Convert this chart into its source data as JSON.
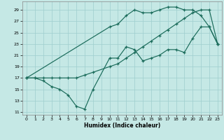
{
  "xlabel": "Humidex (Indice chaleur)",
  "bg_color": "#c5e8e5",
  "grid_color": "#9ecece",
  "line_color": "#1a6b5a",
  "xlim": [
    -0.5,
    23.5
  ],
  "ylim": [
    10.5,
    30.5
  ],
  "xticks": [
    0,
    1,
    2,
    3,
    4,
    5,
    6,
    7,
    8,
    9,
    10,
    11,
    12,
    13,
    14,
    15,
    16,
    17,
    18,
    19,
    20,
    21,
    22,
    23
  ],
  "yticks": [
    11,
    13,
    15,
    17,
    19,
    21,
    23,
    25,
    27,
    29
  ],
  "line1_x": [
    0,
    1,
    2,
    3,
    4,
    5,
    6,
    7,
    8,
    10,
    11,
    12,
    13,
    14,
    15,
    16,
    17,
    18,
    19,
    20,
    21,
    22,
    23
  ],
  "line1_y": [
    17,
    17,
    16.5,
    15.5,
    15.0,
    14.0,
    12.0,
    11.5,
    15.0,
    20.5,
    20.5,
    22.5,
    22.0,
    20.0,
    20.5,
    21.0,
    22.0,
    22.0,
    21.5,
    24.0,
    26.0,
    26.0,
    23.0
  ],
  "line2_x": [
    0,
    1,
    2,
    3,
    4,
    5,
    6,
    7,
    8,
    10,
    11,
    12,
    13,
    14,
    15,
    16,
    17,
    18,
    19,
    20,
    21,
    22,
    23
  ],
  "line2_y": [
    17,
    17,
    17,
    17,
    17,
    17,
    17,
    17.5,
    18.0,
    19.0,
    19.5,
    20.5,
    21.5,
    22.5,
    23.5,
    24.5,
    25.5,
    26.5,
    27.5,
    28.5,
    29.0,
    29.0,
    23.0
  ],
  "line3_x": [
    0,
    10,
    11,
    12,
    13,
    14,
    15,
    16,
    17,
    18,
    19,
    20,
    21,
    22,
    23
  ],
  "line3_y": [
    17,
    26,
    26.5,
    28,
    29,
    28.5,
    28.5,
    29,
    29.5,
    29.5,
    29,
    29,
    28,
    26,
    23
  ]
}
